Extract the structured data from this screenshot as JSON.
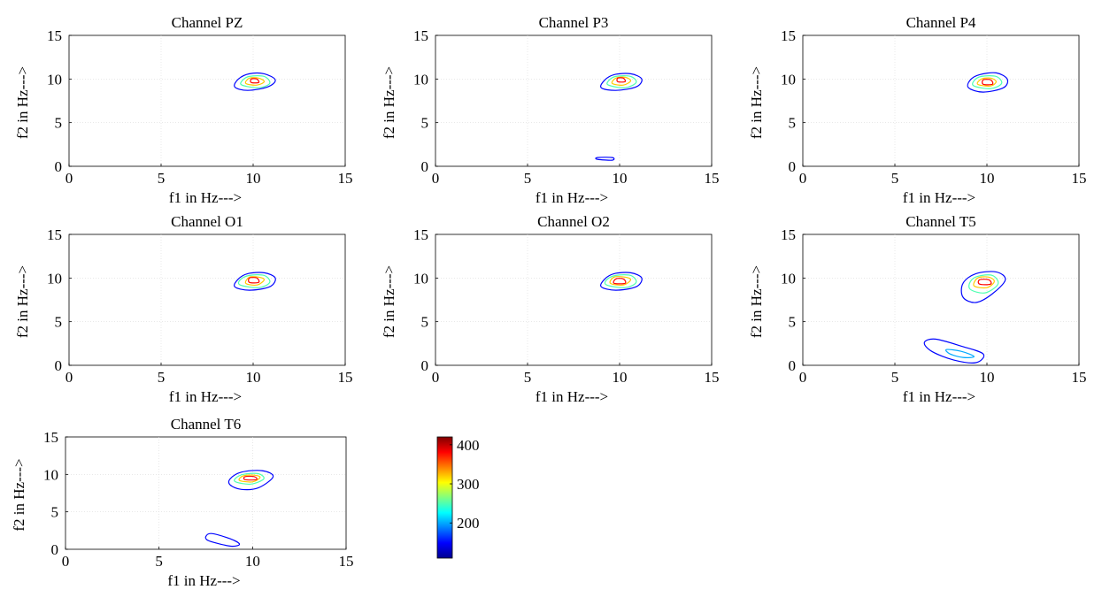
{
  "chart_data": [
    {
      "type": "contour",
      "title": "Channel PZ",
      "xlabel": "f1 in Hz--->",
      "ylabel": "f2 in Hz--->",
      "xlim": [
        0,
        15
      ],
      "ylim": [
        0,
        15
      ],
      "xticks": [
        "0",
        "5",
        "10",
        "15"
      ],
      "yticks": [
        "0",
        "5",
        "10",
        "15"
      ],
      "grid": true,
      "contours": [
        {
          "level": 150,
          "points": [
            [
              9.0,
              9.1
            ],
            [
              9.7,
              8.7
            ],
            [
              10.8,
              9.1
            ],
            [
              11.2,
              9.9
            ],
            [
              10.6,
              10.6
            ],
            [
              9.8,
              10.6
            ],
            [
              9.2,
              10.0
            ]
          ]
        },
        {
          "level": 250,
          "points": [
            [
              9.4,
              9.3
            ],
            [
              10.3,
              9.0
            ],
            [
              10.9,
              9.5
            ],
            [
              10.6,
              10.3
            ],
            [
              9.8,
              10.3
            ],
            [
              9.4,
              9.8
            ]
          ]
        },
        {
          "level": 320,
          "points": [
            [
              9.6,
              9.5
            ],
            [
              10.2,
              9.3
            ],
            [
              10.6,
              9.7
            ],
            [
              10.3,
              10.1
            ],
            [
              9.8,
              10.1
            ]
          ]
        },
        {
          "level": 380,
          "points": [
            [
              9.9,
              9.6
            ],
            [
              10.3,
              9.6
            ],
            [
              10.2,
              10.0
            ],
            [
              9.9,
              10.0
            ]
          ]
        }
      ]
    },
    {
      "type": "contour",
      "title": "Channel P3",
      "xlabel": "f1 in Hz--->",
      "ylabel": "f2 in Hz--->",
      "xlim": [
        0,
        15
      ],
      "ylim": [
        0,
        15
      ],
      "xticks": [
        "0",
        "5",
        "10",
        "15"
      ],
      "yticks": [
        "0",
        "5",
        "10",
        "15"
      ],
      "grid": true,
      "contours": [
        {
          "level": 150,
          "points": [
            [
              9.0,
              9.0
            ],
            [
              9.8,
              8.7
            ],
            [
              10.9,
              9.1
            ],
            [
              11.2,
              10.0
            ],
            [
              10.6,
              10.6
            ],
            [
              9.7,
              10.5
            ],
            [
              9.2,
              9.9
            ]
          ]
        },
        {
          "level": 250,
          "points": [
            [
              9.4,
              9.3
            ],
            [
              10.3,
              9.0
            ],
            [
              10.9,
              9.6
            ],
            [
              10.6,
              10.3
            ],
            [
              9.8,
              10.3
            ],
            [
              9.4,
              9.8
            ]
          ]
        },
        {
          "level": 320,
          "points": [
            [
              9.6,
              9.5
            ],
            [
              10.2,
              9.3
            ],
            [
              10.6,
              9.8
            ],
            [
              10.3,
              10.2
            ],
            [
              9.8,
              10.1
            ]
          ]
        },
        {
          "level": 380,
          "points": [
            [
              9.9,
              9.7
            ],
            [
              10.3,
              9.7
            ],
            [
              10.2,
              10.1
            ],
            [
              9.9,
              10.1
            ]
          ]
        },
        {
          "level": 150,
          "points": [
            [
              8.8,
              0.8
            ],
            [
              9.6,
              0.7
            ],
            [
              9.6,
              1.0
            ],
            [
              8.8,
              1.0
            ]
          ]
        }
      ]
    },
    {
      "type": "contour",
      "title": "Channel P4",
      "xlabel": "f1 in Hz--->",
      "ylabel": "f2 in Hz--->",
      "xlim": [
        0,
        15
      ],
      "ylim": [
        0,
        15
      ],
      "xticks": [
        "0",
        "5",
        "10",
        "15"
      ],
      "yticks": [
        "0",
        "5",
        "10",
        "15"
      ],
      "grid": true,
      "contours": [
        {
          "level": 150,
          "points": [
            [
              9.0,
              9.0
            ],
            [
              9.8,
              8.5
            ],
            [
              10.9,
              9.0
            ],
            [
              11.1,
              10.0
            ],
            [
              10.5,
              10.7
            ],
            [
              9.6,
              10.5
            ],
            [
              9.1,
              9.9
            ]
          ]
        },
        {
          "level": 250,
          "points": [
            [
              9.3,
              9.2
            ],
            [
              10.2,
              8.9
            ],
            [
              10.8,
              9.5
            ],
            [
              10.5,
              10.3
            ],
            [
              9.7,
              10.3
            ],
            [
              9.3,
              9.8
            ]
          ]
        },
        {
          "level": 320,
          "points": [
            [
              9.5,
              9.4
            ],
            [
              10.2,
              9.2
            ],
            [
              10.5,
              9.7
            ],
            [
              10.2,
              10.1
            ],
            [
              9.7,
              10.0
            ]
          ]
        },
        {
          "level": 380,
          "points": [
            [
              9.8,
              9.4
            ],
            [
              10.3,
              9.4
            ],
            [
              10.2,
              9.9
            ],
            [
              9.8,
              9.9
            ]
          ]
        }
      ]
    },
    {
      "type": "contour",
      "title": "Channel O1",
      "xlabel": "f1 in Hz--->",
      "ylabel": "f2 in Hz--->",
      "xlim": [
        0,
        15
      ],
      "ylim": [
        0,
        15
      ],
      "xticks": [
        "0",
        "5",
        "10",
        "15"
      ],
      "yticks": [
        "0",
        "5",
        "10",
        "15"
      ],
      "grid": true,
      "contours": [
        {
          "level": 150,
          "points": [
            [
              9.0,
              9.0
            ],
            [
              9.8,
              8.6
            ],
            [
              10.9,
              9.0
            ],
            [
              11.2,
              10.0
            ],
            [
              10.6,
              10.6
            ],
            [
              9.7,
              10.5
            ],
            [
              9.2,
              9.9
            ]
          ]
        },
        {
          "level": 250,
          "points": [
            [
              9.3,
              9.2
            ],
            [
              10.3,
              8.9
            ],
            [
              10.9,
              9.5
            ],
            [
              10.6,
              10.3
            ],
            [
              9.8,
              10.3
            ],
            [
              9.3,
              9.8
            ]
          ]
        },
        {
          "level": 320,
          "points": [
            [
              9.6,
              9.4
            ],
            [
              10.2,
              9.2
            ],
            [
              10.6,
              9.8
            ],
            [
              10.3,
              10.1
            ],
            [
              9.8,
              10.1
            ]
          ]
        },
        {
          "level": 380,
          "points": [
            [
              9.8,
              9.5
            ],
            [
              10.3,
              9.5
            ],
            [
              10.2,
              10.0
            ],
            [
              9.8,
              10.0
            ]
          ]
        }
      ]
    },
    {
      "type": "contour",
      "title": "Channel O2",
      "xlabel": "f1 in Hz--->",
      "ylabel": "f2 in Hz--->",
      "xlim": [
        0,
        15
      ],
      "ylim": [
        0,
        15
      ],
      "xticks": [
        "0",
        "5",
        "10",
        "15"
      ],
      "yticks": [
        "0",
        "5",
        "10",
        "15"
      ],
      "grid": true,
      "contours": [
        {
          "level": 150,
          "points": [
            [
              9.0,
              9.0
            ],
            [
              9.8,
              8.6
            ],
            [
              10.9,
              9.0
            ],
            [
              11.2,
              10.0
            ],
            [
              10.6,
              10.6
            ],
            [
              9.7,
              10.5
            ],
            [
              9.2,
              9.9
            ]
          ]
        },
        {
          "level": 250,
          "points": [
            [
              9.3,
              9.2
            ],
            [
              10.3,
              8.9
            ],
            [
              10.9,
              9.5
            ],
            [
              10.6,
              10.3
            ],
            [
              9.8,
              10.3
            ],
            [
              9.3,
              9.8
            ]
          ]
        },
        {
          "level": 320,
          "points": [
            [
              9.5,
              9.4
            ],
            [
              10.2,
              9.2
            ],
            [
              10.6,
              9.8
            ],
            [
              10.3,
              10.1
            ],
            [
              9.7,
              10.1
            ]
          ]
        },
        {
          "level": 380,
          "points": [
            [
              9.7,
              9.4
            ],
            [
              10.3,
              9.4
            ],
            [
              10.2,
              9.9
            ],
            [
              9.8,
              9.9
            ]
          ]
        }
      ]
    },
    {
      "type": "contour",
      "title": "Channel T5",
      "xlabel": "f1 in Hz--->",
      "ylabel": "f2 in Hz--->",
      "xlim": [
        0,
        15
      ],
      "ylim": [
        0,
        15
      ],
      "xticks": [
        "0",
        "5",
        "10",
        "15"
      ],
      "yticks": [
        "0",
        "5",
        "10",
        "15"
      ],
      "grid": true,
      "contours": [
        {
          "level": 150,
          "points": [
            [
              8.7,
              7.8
            ],
            [
              9.4,
              7.2
            ],
            [
              10.3,
              8.2
            ],
            [
              11.0,
              9.8
            ],
            [
              10.5,
              10.7
            ],
            [
              9.4,
              10.5
            ],
            [
              8.7,
              9.4
            ]
          ]
        },
        {
          "level": 250,
          "points": [
            [
              9.1,
              8.7
            ],
            [
              9.9,
              8.3
            ],
            [
              10.6,
              9.3
            ],
            [
              10.3,
              10.3
            ],
            [
              9.5,
              10.2
            ],
            [
              9.1,
              9.6
            ]
          ]
        },
        {
          "level": 320,
          "points": [
            [
              9.3,
              9.1
            ],
            [
              10.0,
              8.9
            ],
            [
              10.4,
              9.6
            ],
            [
              10.1,
              10.1
            ],
            [
              9.5,
              10.0
            ]
          ]
        },
        {
          "level": 380,
          "points": [
            [
              9.6,
              9.3
            ],
            [
              10.2,
              9.3
            ],
            [
              10.1,
              9.8
            ],
            [
              9.6,
              9.8
            ]
          ]
        },
        {
          "level": 150,
          "points": [
            [
              6.6,
              2.6
            ],
            [
              7.2,
              3.0
            ],
            [
              8.6,
              2.2
            ],
            [
              9.8,
              1.3
            ],
            [
              9.4,
              0.3
            ],
            [
              8.2,
              0.6
            ],
            [
              7.0,
              1.6
            ]
          ]
        },
        {
          "level": 200,
          "points": [
            [
              7.8,
              1.8
            ],
            [
              8.6,
              1.6
            ],
            [
              9.3,
              1.0
            ],
            [
              8.7,
              0.9
            ],
            [
              8.0,
              1.3
            ]
          ]
        }
      ]
    },
    {
      "type": "contour",
      "title": "Channel T6",
      "xlabel": "f1 in Hz--->",
      "ylabel": "f2 in Hz--->",
      "xlim": [
        0,
        15
      ],
      "ylim": [
        0,
        15
      ],
      "xticks": [
        "0",
        "5",
        "10",
        "15"
      ],
      "yticks": [
        "0",
        "5",
        "10",
        "15"
      ],
      "grid": true,
      "contours": [
        {
          "level": 150,
          "points": [
            [
              8.8,
              8.6
            ],
            [
              9.4,
              8.0
            ],
            [
              10.3,
              8.2
            ],
            [
              11.1,
              9.7
            ],
            [
              10.5,
              10.5
            ],
            [
              9.4,
              10.3
            ],
            [
              8.8,
              9.4
            ]
          ]
        },
        {
          "level": 250,
          "points": [
            [
              9.1,
              9.0
            ],
            [
              9.9,
              8.7
            ],
            [
              10.6,
              9.4
            ],
            [
              10.3,
              10.1
            ],
            [
              9.5,
              10.0
            ],
            [
              9.1,
              9.5
            ]
          ]
        },
        {
          "level": 320,
          "points": [
            [
              9.3,
              9.2
            ],
            [
              10.0,
              9.0
            ],
            [
              10.4,
              9.6
            ],
            [
              10.1,
              9.9
            ],
            [
              9.5,
              9.8
            ]
          ]
        },
        {
          "level": 380,
          "points": [
            [
              9.6,
              9.3
            ],
            [
              10.2,
              9.3
            ],
            [
              10.1,
              9.7
            ],
            [
              9.6,
              9.7
            ]
          ]
        },
        {
          "level": 150,
          "points": [
            [
              7.5,
              1.7
            ],
            [
              7.8,
              2.1
            ],
            [
              8.8,
              1.4
            ],
            [
              9.3,
              0.7
            ],
            [
              8.9,
              0.4
            ],
            [
              8.1,
              0.8
            ],
            [
              7.6,
              1.2
            ]
          ]
        }
      ]
    }
  ],
  "colorbar": {
    "min": 110,
    "max": 420,
    "ticks": [
      200,
      300,
      400
    ],
    "colormap": [
      "#00008f",
      "#0000ff",
      "#0080ff",
      "#00ffff",
      "#80ff80",
      "#ffff00",
      "#ff8000",
      "#ff0000",
      "#800000"
    ]
  }
}
